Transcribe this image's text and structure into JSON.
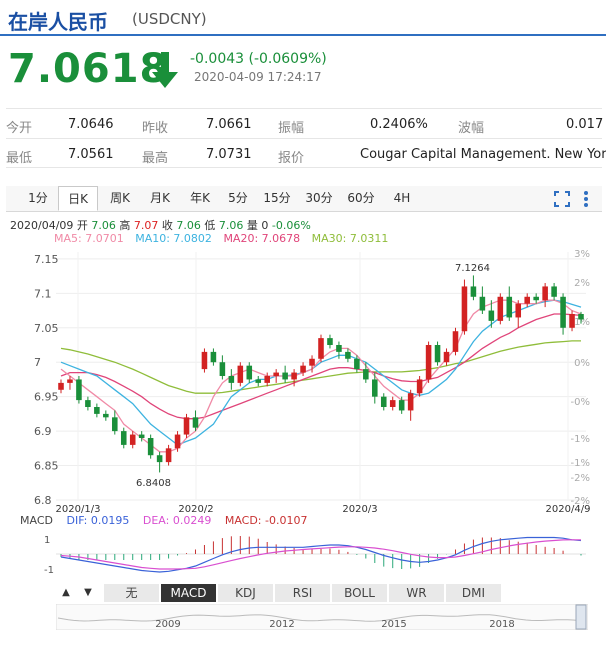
{
  "header": {
    "name": "在岸人民币",
    "code": "(USDCNY)"
  },
  "quote": {
    "price": "7.0618",
    "change": "-0.0043 (-0.0609%)",
    "timestamp": "2020-04-09 17:24:17",
    "color_down": "#1a8f3a"
  },
  "stats": {
    "open_label": "今开",
    "open": "7.0646",
    "prev_label": "昨收",
    "prev": "7.0661",
    "amp_label": "振幅",
    "amp": "0.2406%",
    "wave_label": "波幅",
    "wave": "0.017",
    "low_label": "最低",
    "low": "7.0561",
    "high_label": "最高",
    "high": "7.0731",
    "quote_label": "报价",
    "quote_src": "Cougar Capital Management. New York"
  },
  "tabs": [
    "1分",
    "日K",
    "周K",
    "月K",
    "年K",
    "5分",
    "15分",
    "30分",
    "60分",
    "4H"
  ],
  "active_tab": "日K",
  "toolbar": {
    "fullscreen_icon": "fullscreen-icon",
    "more_icon": "more-icon"
  },
  "ohlc_line": {
    "date": "2020/04/09",
    "open_label": "开",
    "open": "7.06",
    "high_label": "高",
    "high": "7.07",
    "close_label": "收",
    "close": "7.06",
    "low_label": "低",
    "low": "7.06",
    "vol_label": "量",
    "vol": "0",
    "pct": "-0.06%"
  },
  "ma_legend": [
    {
      "label": "MA5: 7.0701",
      "color": "#f08aa6"
    },
    {
      "label": "MA10: 7.0802",
      "color": "#3db3e0"
    },
    {
      "label": "MA20: 7.0678",
      "color": "#e0457a"
    },
    {
      "label": "MA30: 7.0311",
      "color": "#8fbd3a"
    }
  ],
  "macd_legend": {
    "macd": "MACD",
    "dif": "DIF: 0.0195",
    "dea": "DEA: 0.0249",
    "val": "MACD: -0.0107",
    "dif_color": "#3a62d8",
    "dea_color": "#d94fd0",
    "val_color": "#c83232"
  },
  "indicator_tabs": [
    "无",
    "MACD",
    "KDJ",
    "RSI",
    "BOLL",
    "WR",
    "DMI"
  ],
  "active_indicator": "MACD",
  "nav_buttons": [
    "▲",
    "▼"
  ],
  "timeline_labels": [
    "2009",
    "2012",
    "2015",
    "2018"
  ],
  "chart_data": {
    "type": "candlestick",
    "ylim": [
      6.8,
      7.16
    ],
    "y_ticks": [
      "7.15",
      "7.1",
      "7.05",
      "7",
      "6.95",
      "6.9",
      "6.85",
      "6.8"
    ],
    "pct_ticks": [
      "3%",
      "2%",
      "1%",
      "0%",
      "-0%",
      "-1%",
      "-1%",
      "-2%",
      "-2%"
    ],
    "x_ticks": [
      "2020/1/3",
      "2020/2",
      "2020/3",
      "2020/4/9"
    ],
    "annotations": {
      "max": "7.1264",
      "min": "6.8408"
    },
    "up_color": "#d22222",
    "down_color": "#1a8f3a",
    "candles": [
      [
        6.96,
        6.975,
        6.955,
        6.97
      ],
      [
        6.97,
        6.98,
        6.96,
        6.975
      ],
      [
        6.975,
        6.98,
        6.94,
        6.945
      ],
      [
        6.945,
        6.95,
        6.93,
        6.935
      ],
      [
        6.935,
        6.94,
        6.92,
        6.925
      ],
      [
        6.925,
        6.93,
        6.915,
        6.92
      ],
      [
        6.92,
        6.93,
        6.895,
        6.9
      ],
      [
        6.9,
        6.905,
        6.875,
        6.88
      ],
      [
        6.88,
        6.9,
        6.875,
        6.895
      ],
      [
        6.895,
        6.9,
        6.885,
        6.89
      ],
      [
        6.89,
        6.895,
        6.86,
        6.865
      ],
      [
        6.865,
        6.87,
        6.84,
        6.855
      ],
      [
        6.855,
        6.88,
        6.85,
        6.875
      ],
      [
        6.875,
        6.9,
        6.87,
        6.895
      ],
      [
        6.895,
        6.925,
        6.89,
        6.92
      ],
      [
        6.92,
        6.93,
        6.9,
        6.905
      ],
      [
        6.99,
        7.02,
        6.985,
        7.015
      ],
      [
        7.015,
        7.02,
        6.995,
        7.0
      ],
      [
        7.0,
        7.01,
        6.975,
        6.98
      ],
      [
        6.98,
        6.99,
        6.96,
        6.97
      ],
      [
        6.97,
        7.0,
        6.965,
        6.995
      ],
      [
        6.995,
        7.0,
        6.97,
        6.975
      ],
      [
        6.975,
        6.98,
        6.965,
        6.97
      ],
      [
        6.97,
        6.985,
        6.965,
        6.98
      ],
      [
        6.98,
        6.99,
        6.97,
        6.985
      ],
      [
        6.985,
        6.995,
        6.97,
        6.975
      ],
      [
        6.975,
        6.99,
        6.965,
        6.985
      ],
      [
        6.985,
        7.0,
        6.98,
        6.995
      ],
      [
        6.995,
        7.01,
        6.985,
        7.005
      ],
      [
        7.005,
        7.04,
        7.0,
        7.035
      ],
      [
        7.035,
        7.04,
        7.02,
        7.025
      ],
      [
        7.025,
        7.03,
        7.005,
        7.015
      ],
      [
        7.015,
        7.02,
        7.0,
        7.005
      ],
      [
        7.005,
        7.01,
        6.985,
        6.99
      ],
      [
        6.99,
        7.0,
        6.97,
        6.975
      ],
      [
        6.975,
        6.985,
        6.94,
        6.95
      ],
      [
        6.95,
        6.955,
        6.93,
        6.935
      ],
      [
        6.935,
        6.95,
        6.93,
        6.945
      ],
      [
        6.945,
        6.95,
        6.925,
        6.93
      ],
      [
        6.93,
        6.96,
        6.915,
        6.955
      ],
      [
        6.955,
        6.98,
        6.95,
        6.975
      ],
      [
        6.975,
        7.03,
        6.97,
        7.025
      ],
      [
        7.025,
        7.03,
        6.995,
        7.0
      ],
      [
        7.0,
        7.02,
        6.995,
        7.015
      ],
      [
        7.015,
        7.05,
        7.01,
        7.045
      ],
      [
        7.045,
        7.12,
        7.04,
        7.11
      ],
      [
        7.11,
        7.126,
        7.09,
        7.095
      ],
      [
        7.095,
        7.11,
        7.07,
        7.075
      ],
      [
        7.075,
        7.09,
        7.05,
        7.06
      ],
      [
        7.06,
        7.1,
        7.055,
        7.095
      ],
      [
        7.095,
        7.11,
        7.06,
        7.065
      ],
      [
        7.065,
        7.09,
        7.05,
        7.085
      ],
      [
        7.085,
        7.1,
        7.08,
        7.095
      ],
      [
        7.095,
        7.1,
        7.085,
        7.09
      ],
      [
        7.09,
        7.115,
        7.08,
        7.11
      ],
      [
        7.11,
        7.115,
        7.09,
        7.095
      ],
      [
        7.095,
        7.1,
        7.04,
        7.05
      ],
      [
        7.05,
        7.075,
        7.045,
        7.07
      ],
      [
        7.07,
        7.073,
        7.056,
        7.062
      ]
    ],
    "ma5": [
      6.99,
      6.98,
      6.97,
      6.96,
      6.95,
      6.94,
      6.93,
      6.91,
      6.9,
      6.89,
      6.88,
      6.87,
      6.87,
      6.875,
      6.89,
      6.9,
      6.92,
      6.95,
      6.97,
      6.98,
      6.985,
      6.99,
      6.985,
      6.98,
      6.98,
      6.98,
      6.98,
      6.985,
      6.99,
      7.005,
      7.015,
      7.02,
      7.02,
      7.01,
      6.995,
      6.98,
      6.965,
      6.955,
      6.945,
      6.945,
      6.955,
      6.975,
      6.99,
      7.005,
      7.02,
      7.05,
      7.07,
      7.08,
      7.085,
      7.09,
      7.09,
      7.085,
      7.085,
      7.085,
      7.09,
      7.09,
      7.085,
      7.075,
      7.07
    ],
    "ma10": [
      7.0,
      6.995,
      6.99,
      6.985,
      6.98,
      6.97,
      6.96,
      6.95,
      6.94,
      6.925,
      6.91,
      6.9,
      6.89,
      6.88,
      6.885,
      6.89,
      6.9,
      6.91,
      6.93,
      6.95,
      6.96,
      6.97,
      6.975,
      6.975,
      6.98,
      6.98,
      6.982,
      6.985,
      6.99,
      7.0,
      7.005,
      7.01,
      7.01,
      7.005,
      7.0,
      6.99,
      6.98,
      6.97,
      6.96,
      6.955,
      6.952,
      6.955,
      6.965,
      6.975,
      6.99,
      7.01,
      7.03,
      7.045,
      7.055,
      7.065,
      7.07,
      7.075,
      7.08,
      7.085,
      7.088,
      7.09,
      7.088,
      7.084,
      7.08
    ],
    "ma20": [
      6.98,
      6.985,
      6.985,
      6.985,
      6.982,
      6.978,
      6.972,
      6.965,
      6.958,
      6.95,
      6.94,
      6.932,
      6.925,
      6.92,
      6.918,
      6.918,
      6.92,
      6.925,
      6.93,
      6.935,
      6.94,
      6.945,
      6.95,
      6.955,
      6.96,
      6.965,
      6.97,
      6.975,
      6.98,
      6.985,
      6.99,
      6.992,
      6.992,
      6.99,
      6.988,
      6.985,
      6.98,
      6.976,
      6.973,
      6.972,
      6.972,
      6.975,
      6.978,
      6.985,
      6.992,
      7.0,
      7.01,
      7.02,
      7.028,
      7.036,
      7.042,
      7.05,
      7.056,
      7.062,
      7.066,
      7.07,
      7.07,
      7.069,
      7.068
    ],
    "ma30": [
      7.02,
      7.018,
      7.015,
      7.012,
      7.008,
      7.004,
      7.0,
      6.995,
      6.99,
      6.984,
      6.978,
      6.972,
      6.966,
      6.962,
      6.958,
      6.955,
      6.955,
      6.955,
      6.956,
      6.958,
      6.96,
      6.962,
      6.964,
      6.966,
      6.968,
      6.97,
      6.972,
      6.974,
      6.976,
      6.978,
      6.98,
      6.982,
      6.984,
      6.985,
      6.986,
      6.986,
      6.986,
      6.986,
      6.986,
      6.987,
      6.988,
      6.99,
      6.992,
      6.995,
      6.998,
      7.0,
      7.004,
      7.008,
      7.012,
      7.016,
      7.019,
      7.022,
      7.024,
      7.026,
      7.028,
      7.029,
      7.03,
      7.031,
      7.031
    ],
    "macd": {
      "ylim": [
        -1.6,
        1.6
      ],
      "y_ticks": [
        "1",
        "-1"
      ],
      "dif": [
        -0.2,
        -0.3,
        -0.4,
        -0.5,
        -0.6,
        -0.7,
        -0.8,
        -0.9,
        -1.0,
        -1.1,
        -1.15,
        -1.2,
        -1.15,
        -1.05,
        -0.95,
        -0.8,
        -0.55,
        -0.3,
        -0.05,
        0.15,
        0.3,
        0.4,
        0.45,
        0.45,
        0.45,
        0.45,
        0.45,
        0.45,
        0.5,
        0.55,
        0.6,
        0.6,
        0.55,
        0.45,
        0.3,
        0.1,
        -0.1,
        -0.25,
        -0.4,
        -0.5,
        -0.55,
        -0.5,
        -0.4,
        -0.25,
        -0.05,
        0.25,
        0.5,
        0.7,
        0.85,
        0.95,
        1.0,
        1.05,
        1.1,
        1.1,
        1.1,
        1.1,
        1.05,
        0.95,
        0.9
      ],
      "dea": [
        -0.1,
        -0.15,
        -0.2,
        -0.3,
        -0.4,
        -0.5,
        -0.6,
        -0.7,
        -0.8,
        -0.9,
        -0.95,
        -1.0,
        -1.0,
        -1.0,
        -0.98,
        -0.95,
        -0.85,
        -0.72,
        -0.58,
        -0.44,
        -0.3,
        -0.18,
        -0.06,
        0.05,
        0.13,
        0.2,
        0.25,
        0.3,
        0.34,
        0.38,
        0.42,
        0.46,
        0.48,
        0.48,
        0.45,
        0.4,
        0.32,
        0.22,
        0.1,
        -0.02,
        -0.12,
        -0.2,
        -0.24,
        -0.24,
        -0.2,
        -0.1,
        0.02,
        0.15,
        0.3,
        0.42,
        0.54,
        0.64,
        0.72,
        0.8,
        0.86,
        0.9,
        0.94,
        0.95,
        0.95
      ],
      "hist": [
        -0.2,
        -0.3,
        -0.4,
        -0.4,
        -0.4,
        -0.4,
        -0.4,
        -0.4,
        -0.4,
        -0.4,
        -0.4,
        -0.4,
        -0.3,
        -0.1,
        0.06,
        0.3,
        0.6,
        0.84,
        1.06,
        1.18,
        1.2,
        1.16,
        1.02,
        0.8,
        0.64,
        0.5,
        0.4,
        0.3,
        0.32,
        0.34,
        0.36,
        0.28,
        0.14,
        -0.06,
        -0.3,
        -0.6,
        -0.84,
        -0.94,
        -1.0,
        -0.96,
        -0.86,
        -0.6,
        -0.32,
        -0.02,
        0.3,
        0.7,
        0.96,
        1.1,
        1.1,
        1.06,
        0.92,
        0.82,
        0.76,
        0.6,
        0.48,
        0.4,
        0.22,
        0.0,
        -0.1
      ]
    }
  }
}
